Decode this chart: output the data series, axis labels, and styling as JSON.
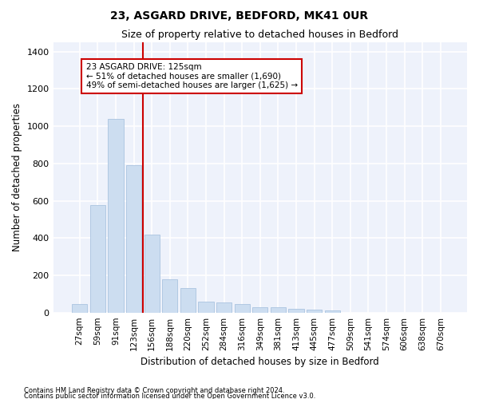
{
  "title1": "23, ASGARD DRIVE, BEDFORD, MK41 0UR",
  "title2": "Size of property relative to detached houses in Bedford",
  "xlabel": "Distribution of detached houses by size in Bedford",
  "ylabel": "Number of detached properties",
  "footer1": "Contains HM Land Registry data © Crown copyright and database right 2024.",
  "footer2": "Contains public sector information licensed under the Open Government Licence v3.0.",
  "bar_color": "#ccddf0",
  "bar_edge_color": "#aac4e0",
  "background_color": "#eef2fb",
  "grid_color": "#ffffff",
  "annotation_line1": "23 ASGARD DRIVE: 125sqm",
  "annotation_line2": "← 51% of detached houses are smaller (1,690)",
  "annotation_line3": "49% of semi-detached houses are larger (1,625) →",
  "vline_color": "#cc0000",
  "categories": [
    "27sqm",
    "59sqm",
    "91sqm",
    "123sqm",
    "156sqm",
    "188sqm",
    "220sqm",
    "252sqm",
    "284sqm",
    "316sqm",
    "349sqm",
    "381sqm",
    "413sqm",
    "445sqm",
    "477sqm",
    "509sqm",
    "541sqm",
    "574sqm",
    "606sqm",
    "638sqm",
    "670sqm"
  ],
  "values": [
    45,
    575,
    1040,
    790,
    420,
    180,
    130,
    60,
    55,
    45,
    30,
    30,
    20,
    15,
    10,
    0,
    0,
    0,
    0,
    0,
    0
  ],
  "ylim": [
    0,
    1450
  ],
  "yticks": [
    0,
    200,
    400,
    600,
    800,
    1000,
    1200,
    1400
  ]
}
